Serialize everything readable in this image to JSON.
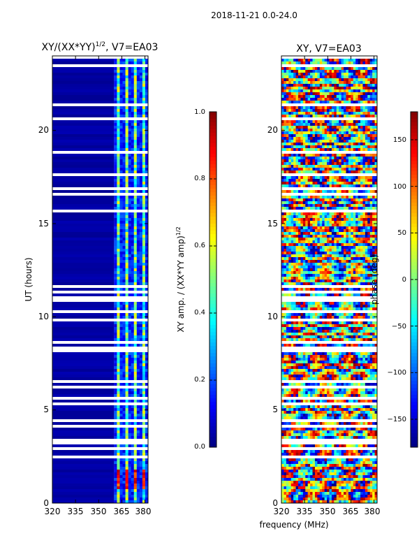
{
  "figure": {
    "suptitle": "2018-11-21 0.0-24.0"
  },
  "chart_data": [
    {
      "type": "heatmap",
      "title": "XY/(XX*YY)",
      "title_sup": "1/2",
      "title_suffix": ", V7=EA03",
      "xlabel": "frequency (MHz)",
      "ylabel": "UT (hours)",
      "xlim": [
        320,
        382
      ],
      "ylim": [
        0,
        24
      ],
      "xticks": [
        320,
        335,
        350,
        365,
        380
      ],
      "yticks": [
        0,
        5,
        10,
        15,
        20
      ],
      "colorbar": {
        "label": "XY amp. / (XX*YY amp)",
        "label_sup": "1/2",
        "range": [
          0.0,
          1.0
        ],
        "ticks": [
          "0.0",
          "0.2",
          "0.4",
          "0.6",
          "0.8",
          "1.0"
        ],
        "tick_values": [
          0.0,
          0.2,
          0.4,
          0.6,
          0.8,
          1.0
        ],
        "colormap": "jet"
      },
      "band_start_mhz": 360
    },
    {
      "type": "heatmap",
      "title": "XY, V7=EA03",
      "xlabel": "frequency (MHz)",
      "ylabel": "",
      "xlim": [
        320,
        382
      ],
      "ylim": [
        0,
        24
      ],
      "xticks": [
        320,
        335,
        350,
        365,
        380
      ],
      "yticks": [
        0,
        5,
        10,
        15,
        20
      ],
      "colorbar": {
        "label": "phase (deg)",
        "range": [
          -180,
          180
        ],
        "ticks": [
          "150",
          "100",
          "50",
          "0",
          "−50",
          "−100",
          "−150"
        ],
        "tick_values": [
          150,
          100,
          50,
          0,
          -50,
          -100,
          -150
        ],
        "colormap": "jet"
      }
    }
  ],
  "ticks": {
    "p1_x": [
      "320",
      "335",
      "350",
      "365",
      "380"
    ],
    "p1_y": [
      "0",
      "5",
      "10",
      "15",
      "20"
    ],
    "p2_x": [
      "320",
      "335",
      "350",
      "365",
      "380"
    ],
    "p2_y": [
      "0",
      "5",
      "10",
      "15",
      "20"
    ]
  }
}
